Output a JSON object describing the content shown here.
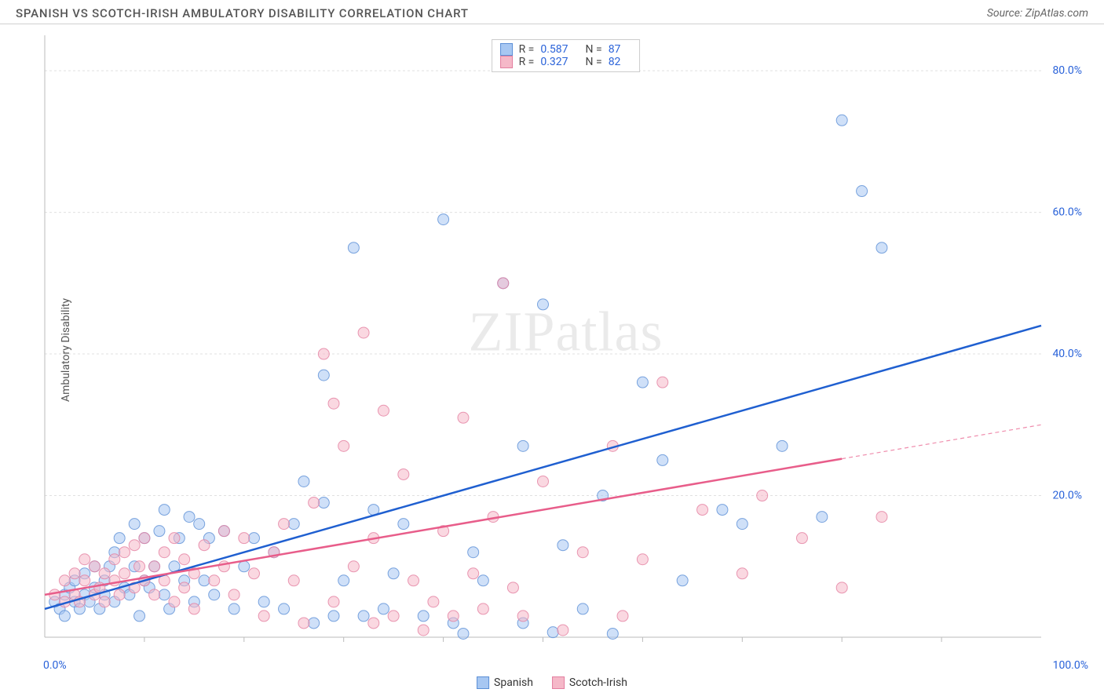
{
  "header": {
    "title": "SPANISH VS SCOTCH-IRISH AMBULATORY DISABILITY CORRELATION CHART",
    "source": "Source: ZipAtlas.com"
  },
  "chart": {
    "type": "scatter",
    "ylabel": "Ambulatory Disability",
    "watermark": "ZIPatlas",
    "xlim": [
      0,
      100
    ],
    "ylim": [
      0,
      85
    ],
    "x_axis_min_label": "0.0%",
    "x_axis_max_label": "100.0%",
    "x_tick_positions": [
      10,
      20,
      30,
      40,
      50,
      60,
      70,
      80,
      90
    ],
    "y_ticks": [
      {
        "v": 20,
        "label": "20.0%"
      },
      {
        "v": 40,
        "label": "40.0%"
      },
      {
        "v": 60,
        "label": "60.0%"
      },
      {
        "v": 80,
        "label": "80.0%"
      }
    ],
    "background_color": "#ffffff",
    "grid_color": "#e0e0e0",
    "axis_color": "#bbbbbb",
    "tick_label_color": "#2962d9",
    "marker_radius": 7,
    "marker_opacity": 0.55,
    "line_width": 2.5,
    "series": [
      {
        "name": "Spanish",
        "color_fill": "#a7c7f2",
        "color_stroke": "#5b8fd6",
        "line_color": "#1f5fd0",
        "R": "0.587",
        "N": "87",
        "trend": {
          "x1": 0,
          "y1": 4,
          "x2": 100,
          "y2": 44,
          "solid_until_x": 100
        },
        "points": [
          [
            1,
            5
          ],
          [
            1.5,
            4
          ],
          [
            2,
            6
          ],
          [
            2,
            3
          ],
          [
            2.5,
            7
          ],
          [
            3,
            5
          ],
          [
            3,
            8
          ],
          [
            3.5,
            4
          ],
          [
            4,
            6
          ],
          [
            4,
            9
          ],
          [
            4.5,
            5
          ],
          [
            5,
            7
          ],
          [
            5,
            10
          ],
          [
            5.5,
            4
          ],
          [
            6,
            8
          ],
          [
            6,
            6
          ],
          [
            6.5,
            10
          ],
          [
            7,
            12
          ],
          [
            7,
            5
          ],
          [
            7.5,
            14
          ],
          [
            8,
            7
          ],
          [
            8.5,
            6
          ],
          [
            9,
            10
          ],
          [
            9,
            16
          ],
          [
            9.5,
            3
          ],
          [
            10,
            8
          ],
          [
            10,
            14
          ],
          [
            10.5,
            7
          ],
          [
            11,
            10
          ],
          [
            11.5,
            15
          ],
          [
            12,
            6
          ],
          [
            12,
            18
          ],
          [
            12.5,
            4
          ],
          [
            13,
            10
          ],
          [
            13.5,
            14
          ],
          [
            14,
            8
          ],
          [
            14.5,
            17
          ],
          [
            15,
            5
          ],
          [
            15.5,
            16
          ],
          [
            16,
            8
          ],
          [
            16.5,
            14
          ],
          [
            17,
            6
          ],
          [
            18,
            15
          ],
          [
            19,
            4
          ],
          [
            20,
            10
          ],
          [
            21,
            14
          ],
          [
            22,
            5
          ],
          [
            23,
            12
          ],
          [
            24,
            4
          ],
          [
            25,
            16
          ],
          [
            26,
            22
          ],
          [
            27,
            2
          ],
          [
            28,
            37
          ],
          [
            28,
            19
          ],
          [
            29,
            3
          ],
          [
            30,
            8
          ],
          [
            31,
            55
          ],
          [
            32,
            3
          ],
          [
            33,
            18
          ],
          [
            34,
            4
          ],
          [
            35,
            9
          ],
          [
            36,
            16
          ],
          [
            38,
            3
          ],
          [
            40,
            59
          ],
          [
            41,
            2
          ],
          [
            42,
            0.5
          ],
          [
            43,
            12
          ],
          [
            44,
            8
          ],
          [
            46,
            50
          ],
          [
            48,
            27
          ],
          [
            48,
            2
          ],
          [
            50,
            47
          ],
          [
            51,
            0.7
          ],
          [
            52,
            13
          ],
          [
            54,
            4
          ],
          [
            56,
            20
          ],
          [
            57,
            0.5
          ],
          [
            60,
            36
          ],
          [
            62,
            25
          ],
          [
            64,
            8
          ],
          [
            68,
            18
          ],
          [
            70,
            16
          ],
          [
            74,
            27
          ],
          [
            78,
            17
          ],
          [
            80,
            73
          ],
          [
            82,
            63
          ],
          [
            84,
            55
          ]
        ]
      },
      {
        "name": "Scotch-Irish",
        "color_fill": "#f5b8c8",
        "color_stroke": "#e37fa0",
        "line_color": "#e85d8a",
        "R": "0.327",
        "N": "82",
        "trend": {
          "x1": 0,
          "y1": 6,
          "x2": 100,
          "y2": 30,
          "solid_until_x": 80
        },
        "points": [
          [
            1,
            6
          ],
          [
            2,
            5
          ],
          [
            2,
            8
          ],
          [
            3,
            6
          ],
          [
            3,
            9
          ],
          [
            3.5,
            5
          ],
          [
            4,
            8
          ],
          [
            4,
            11
          ],
          [
            5,
            6
          ],
          [
            5,
            10
          ],
          [
            5.5,
            7
          ],
          [
            6,
            9
          ],
          [
            6,
            5
          ],
          [
            7,
            11
          ],
          [
            7,
            8
          ],
          [
            7.5,
            6
          ],
          [
            8,
            12
          ],
          [
            8,
            9
          ],
          [
            9,
            7
          ],
          [
            9,
            13
          ],
          [
            9.5,
            10
          ],
          [
            10,
            8
          ],
          [
            10,
            14
          ],
          [
            11,
            10
          ],
          [
            11,
            6
          ],
          [
            12,
            12
          ],
          [
            12,
            8
          ],
          [
            13,
            14
          ],
          [
            13,
            5
          ],
          [
            14,
            7
          ],
          [
            14,
            11
          ],
          [
            15,
            9
          ],
          [
            15,
            4
          ],
          [
            16,
            13
          ],
          [
            17,
            8
          ],
          [
            18,
            10
          ],
          [
            18,
            15
          ],
          [
            19,
            6
          ],
          [
            20,
            14
          ],
          [
            21,
            9
          ],
          [
            22,
            3
          ],
          [
            23,
            12
          ],
          [
            24,
            16
          ],
          [
            25,
            8
          ],
          [
            26,
            2
          ],
          [
            27,
            19
          ],
          [
            28,
            40
          ],
          [
            29,
            33
          ],
          [
            29,
            5
          ],
          [
            30,
            27
          ],
          [
            31,
            10
          ],
          [
            32,
            43
          ],
          [
            33,
            14
          ],
          [
            33,
            2
          ],
          [
            34,
            32
          ],
          [
            35,
            3
          ],
          [
            36,
            23
          ],
          [
            37,
            8
          ],
          [
            38,
            1
          ],
          [
            39,
            5
          ],
          [
            40,
            15
          ],
          [
            41,
            3
          ],
          [
            42,
            31
          ],
          [
            43,
            9
          ],
          [
            44,
            4
          ],
          [
            45,
            17
          ],
          [
            46,
            50
          ],
          [
            47,
            7
          ],
          [
            48,
            3
          ],
          [
            50,
            22
          ],
          [
            52,
            1
          ],
          [
            54,
            12
          ],
          [
            57,
            27
          ],
          [
            58,
            3
          ],
          [
            60,
            11
          ],
          [
            62,
            36
          ],
          [
            66,
            18
          ],
          [
            70,
            9
          ],
          [
            72,
            20
          ],
          [
            76,
            14
          ],
          [
            80,
            7
          ],
          [
            84,
            17
          ]
        ]
      }
    ],
    "bottom_legend": [
      {
        "label": "Spanish",
        "fill": "#a7c7f2",
        "stroke": "#5b8fd6"
      },
      {
        "label": "Scotch-Irish",
        "fill": "#f5b8c8",
        "stroke": "#e37fa0"
      }
    ]
  }
}
